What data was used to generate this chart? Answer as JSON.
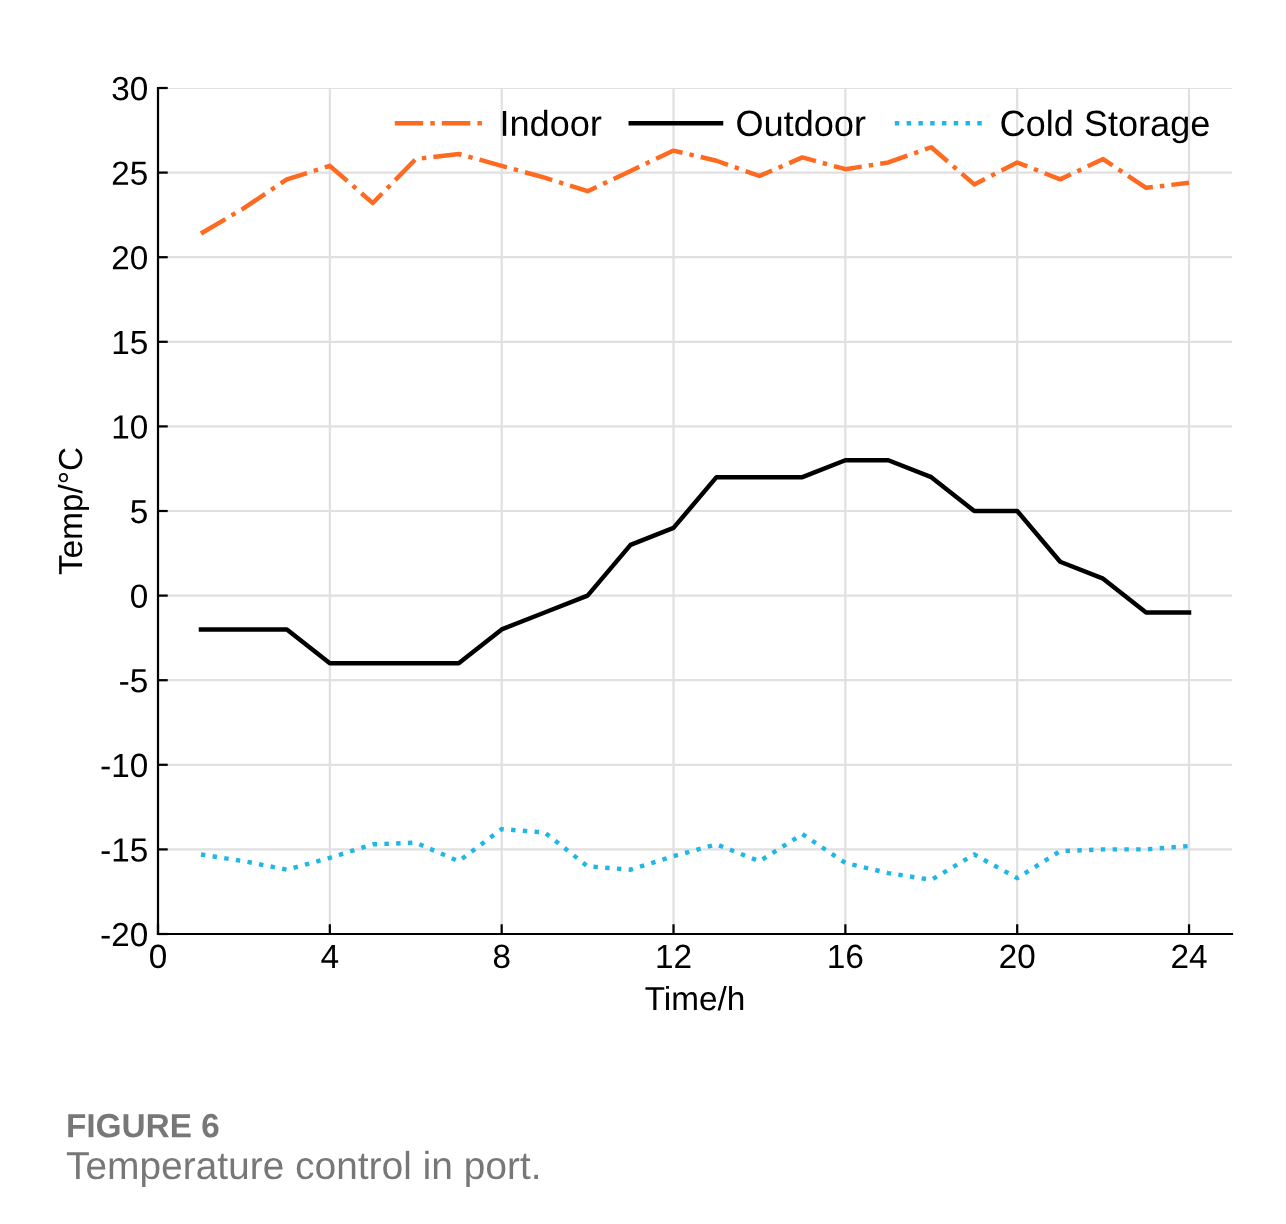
{
  "chart_data": {
    "type": "line",
    "xlabel": "Time/h",
    "ylabel": "Temp/°C",
    "annotations": [
      "FIGURE 6",
      "Temperature control in port."
    ],
    "x": [
      1,
      2,
      3,
      4,
      5,
      6,
      7,
      8,
      9,
      10,
      11,
      12,
      13,
      14,
      15,
      16,
      17,
      18,
      19,
      20,
      21,
      22,
      23,
      24
    ],
    "series": [
      {
        "name": "Indoor",
        "color": "#ff6a21",
        "line_style": "dashdot",
        "values": [
          21.4,
          22.9,
          24.6,
          25.4,
          23.2,
          25.8,
          26.1,
          25.4,
          24.7,
          23.9,
          25.1,
          26.3,
          25.7,
          24.8,
          25.9,
          25.2,
          25.6,
          26.5,
          24.3,
          25.6,
          24.6,
          25.8,
          24.1,
          24.4
        ]
      },
      {
        "name": "Outdoor",
        "color": "#000000",
        "line_style": "solid",
        "values": [
          -2,
          -2,
          -2,
          -4,
          -4,
          -4,
          -4,
          -2,
          -1,
          0,
          3,
          4,
          7,
          7,
          7,
          8,
          8,
          7,
          5,
          5,
          2,
          1,
          -1,
          -1
        ]
      },
      {
        "name": "Cold Storage",
        "color": "#1fb8e6",
        "line_style": "dotted",
        "values": [
          -15.3,
          -15.7,
          -16.2,
          -15.5,
          -14.7,
          -14.6,
          -15.7,
          -13.8,
          -14.0,
          -16.0,
          -16.2,
          -15.4,
          -14.7,
          -15.7,
          -14.1,
          -15.8,
          -16.4,
          -16.8,
          -15.3,
          -16.7,
          -15.1,
          -15.0,
          -15.0,
          -14.8
        ]
      }
    ],
    "xlim": [
      0,
      25
    ],
    "ylim": [
      -20,
      30
    ],
    "xticks": [
      0,
      4,
      8,
      12,
      16,
      20,
      24
    ],
    "yticks": [
      -20,
      -15,
      -10,
      -5,
      0,
      5,
      10,
      15,
      20,
      25,
      30
    ],
    "grid": true,
    "legend": "top right",
    "marker": "none"
  }
}
